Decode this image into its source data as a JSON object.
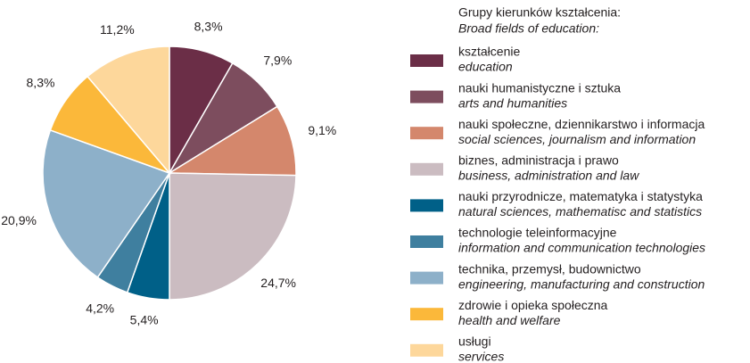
{
  "chart_data": {
    "type": "pie",
    "legend_title": "Grupy kierunków kształcenia:",
    "legend_subtitle": "Broad fields of education:",
    "categories": [
      "kształcenie",
      "nauki humanistyczne i sztuka",
      "nauki społeczne, dziennikarstwo i informacja",
      "biznes, administracja i prawo",
      "nauki przyrodnicze, matematyka i statystyka",
      "technologie teleinformacyjne",
      "technika, przemysł, budownictwo",
      "zdrowie i opieka społeczna",
      "usługi"
    ],
    "categories_en": [
      "education",
      "arts and humanities",
      "social sciences, journalism and information",
      "business, administration and law",
      "natural sciences, mathematisc and statistics",
      "information and communication technologies",
      "engineering, manufacturing and construction",
      "health and welfare",
      "services"
    ],
    "values": [
      8.3,
      7.9,
      9.1,
      24.7,
      5.4,
      4.2,
      20.9,
      8.3,
      11.2
    ],
    "value_labels": [
      "8,3%",
      "7,9%",
      "9,1%",
      "24,7%",
      "5,4%",
      "4,2%",
      "20,9%",
      "8,3%",
      "11,2%"
    ],
    "colors": [
      "#6b2e47",
      "#7d4d5e",
      "#d4876c",
      "#cbbcc1",
      "#006088",
      "#3f7f9f",
      "#8db0c9",
      "#fbb83a",
      "#fdd79b"
    ]
  }
}
